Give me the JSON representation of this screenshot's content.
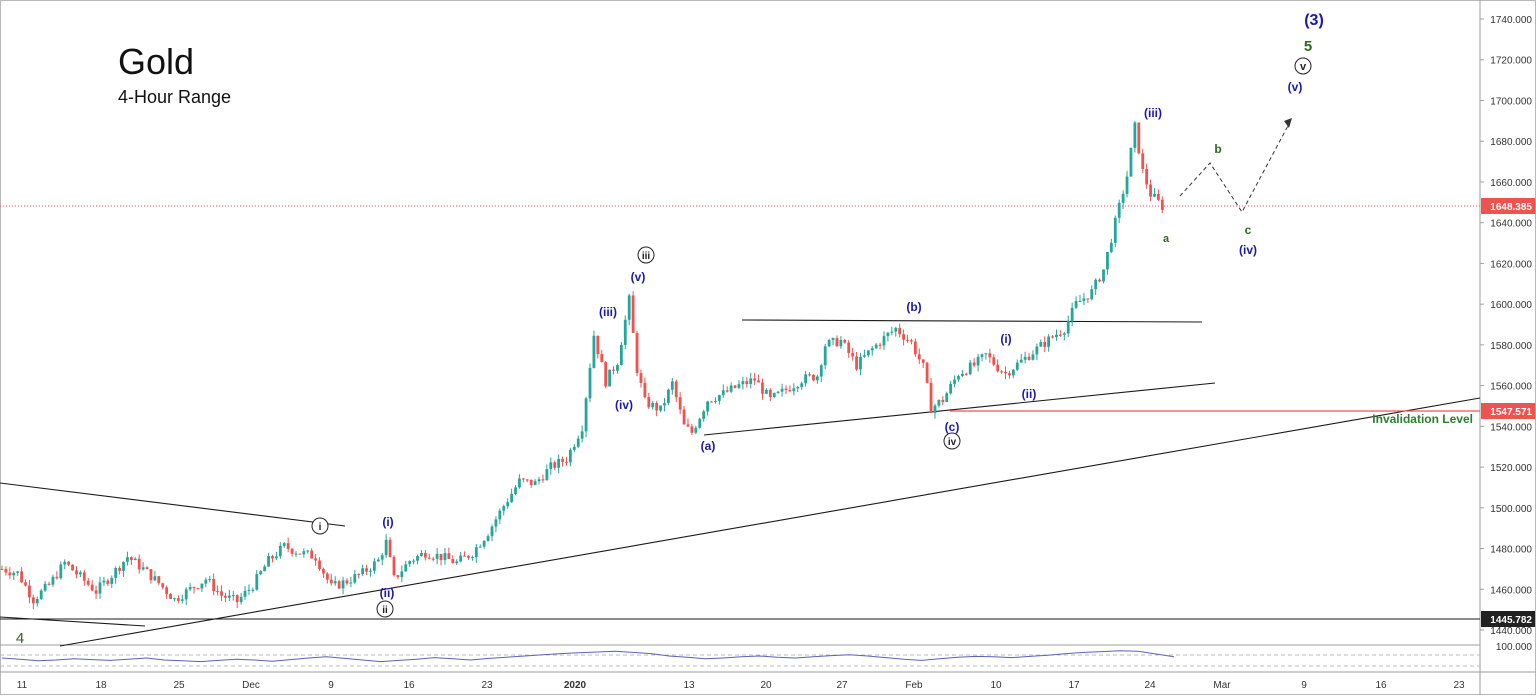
{
  "chart_data": {
    "type": "candlestick",
    "title": "Gold",
    "subtitle": "4-Hour Range",
    "colors": {
      "up": "#26a69a",
      "down": "#ef5350",
      "current_price_line": "#ef5350",
      "invalidation_line": "#ef5350",
      "invalidation_text": "#2e7d32",
      "wave_blue": "#1a1aa6",
      "wave_green": "#2e6b1f",
      "wave_black": "#222222",
      "rsi_line": "#5b63b7"
    },
    "price_axis": {
      "min": 1430,
      "max": 1745,
      "ticks": [
        "1740.000",
        "1720.000",
        "1700.000",
        "1680.000",
        "1660.000",
        "1640.000",
        "1620.000",
        "1600.000",
        "1580.000",
        "1560.000",
        "1540.000",
        "1520.000",
        "1500.000",
        "1480.000",
        "1460.000",
        "1440.000"
      ]
    },
    "time_axis_labels": [
      "11",
      "18",
      "25",
      "Dec",
      "9",
      "16",
      "23",
      "2020",
      "13",
      "20",
      "27",
      "Feb",
      "10",
      "17",
      "24",
      "Mar",
      "9",
      "16",
      "23"
    ],
    "price_labels": [
      {
        "name": "current-price",
        "text": "1648.385",
        "value": 1648.385,
        "style": "red"
      },
      {
        "name": "invalidation-price",
        "text": "1547.571",
        "value": 1547.571,
        "style": "red"
      },
      {
        "name": "support-price",
        "text": "1445.782",
        "value": 1445.782,
        "style": "dark"
      }
    ],
    "invalidation_text": "Invalidation Level",
    "price_path": [
      {
        "t": 0,
        "p": 1470
      },
      {
        "t": 2,
        "p": 1468
      },
      {
        "t": 4,
        "p": 1455
      },
      {
        "t": 6,
        "p": 1462
      },
      {
        "t": 8,
        "p": 1473
      },
      {
        "t": 10,
        "p": 1466
      },
      {
        "t": 12,
        "p": 1459
      },
      {
        "t": 14,
        "p": 1467
      },
      {
        "t": 16,
        "p": 1476
      },
      {
        "t": 18,
        "p": 1470
      },
      {
        "t": 20,
        "p": 1463
      },
      {
        "t": 22,
        "p": 1455
      },
      {
        "t": 24,
        "p": 1460
      },
      {
        "t": 26,
        "p": 1465
      },
      {
        "t": 28,
        "p": 1457
      },
      {
        "t": 30,
        "p": 1454
      },
      {
        "t": 32,
        "p": 1462
      },
      {
        "t": 34,
        "p": 1474
      },
      {
        "t": 36,
        "p": 1481
      },
      {
        "t": 38,
        "p": 1478
      },
      {
        "t": 40,
        "p": 1476
      },
      {
        "t": 42,
        "p": 1461
      },
      {
        "t": 44,
        "p": 1464
      },
      {
        "t": 46,
        "p": 1468
      },
      {
        "t": 48,
        "p": 1474
      },
      {
        "t": 49,
        "p": 1483
      },
      {
        "t": 50,
        "p": 1465
      },
      {
        "t": 52,
        "p": 1474
      },
      {
        "t": 54,
        "p": 1478
      },
      {
        "t": 56,
        "p": 1476
      },
      {
        "t": 58,
        "p": 1473
      },
      {
        "t": 60,
        "p": 1478
      },
      {
        "t": 62,
        "p": 1488
      },
      {
        "t": 64,
        "p": 1501
      },
      {
        "t": 66,
        "p": 1513
      },
      {
        "t": 68,
        "p": 1512
      },
      {
        "t": 70,
        "p": 1520
      },
      {
        "t": 72,
        "p": 1524
      },
      {
        "t": 74,
        "p": 1540
      },
      {
        "t": 75.5,
        "p": 1585
      },
      {
        "t": 77,
        "p": 1562
      },
      {
        "t": 78.5,
        "p": 1572
      },
      {
        "t": 80,
        "p": 1602
      },
      {
        "t": 81,
        "p": 1568
      },
      {
        "t": 82,
        "p": 1552
      },
      {
        "t": 84,
        "p": 1548
      },
      {
        "t": 85.5,
        "p": 1561
      },
      {
        "t": 87,
        "p": 1540
      },
      {
        "t": 88,
        "p": 1537
      },
      {
        "t": 90,
        "p": 1553
      },
      {
        "t": 92,
        "p": 1556
      },
      {
        "t": 94,
        "p": 1560
      },
      {
        "t": 96,
        "p": 1563
      },
      {
        "t": 98,
        "p": 1553
      },
      {
        "t": 100,
        "p": 1558
      },
      {
        "t": 102,
        "p": 1563
      },
      {
        "t": 104,
        "p": 1565
      },
      {
        "t": 105,
        "p": 1580
      },
      {
        "t": 107,
        "p": 1582
      },
      {
        "t": 109,
        "p": 1570
      },
      {
        "t": 111,
        "p": 1578
      },
      {
        "t": 113,
        "p": 1585
      },
      {
        "t": 114,
        "p": 1588
      },
      {
        "t": 116,
        "p": 1581
      },
      {
        "t": 117.5,
        "p": 1569
      },
      {
        "t": 118.5,
        "p": 1549
      },
      {
        "t": 120,
        "p": 1553
      },
      {
        "t": 122,
        "p": 1566
      },
      {
        "t": 124,
        "p": 1570
      },
      {
        "t": 125.5,
        "p": 1575
      },
      {
        "t": 127,
        "p": 1569
      },
      {
        "t": 128,
        "p": 1566
      },
      {
        "t": 130,
        "p": 1572
      },
      {
        "t": 132,
        "p": 1578
      },
      {
        "t": 134,
        "p": 1584
      },
      {
        "t": 135.5,
        "p": 1588
      },
      {
        "t": 137,
        "p": 1600
      },
      {
        "t": 139,
        "p": 1606
      },
      {
        "t": 140.5,
        "p": 1617
      },
      {
        "t": 142,
        "p": 1640
      },
      {
        "t": 143.5,
        "p": 1663
      },
      {
        "t": 144.5,
        "p": 1687
      },
      {
        "t": 145.5,
        "p": 1665
      },
      {
        "t": 146.5,
        "p": 1654
      },
      {
        "t": 148,
        "p": 1648
      }
    ],
    "rsi": {
      "label": "100.000",
      "values": [
        55,
        52,
        48,
        50,
        53,
        51,
        49,
        52,
        55,
        50,
        48,
        46,
        49,
        52,
        50,
        47,
        51,
        55,
        58,
        54,
        50,
        46,
        49,
        52,
        56,
        53,
        50,
        54,
        57,
        60,
        63,
        66,
        68,
        70,
        72,
        69,
        66,
        60,
        57,
        53,
        55,
        58,
        60,
        57,
        55,
        58,
        61,
        63,
        60,
        56,
        52,
        49,
        53,
        57,
        59,
        58,
        56,
        59,
        62,
        66,
        69,
        71,
        73,
        72,
        65,
        58
      ]
    },
    "wave_labels": [
      {
        "name": "wave-label-3-major",
        "text": "(3)",
        "style": "blue"
      },
      {
        "name": "wave-label-5",
        "text": "5",
        "style": "green"
      },
      {
        "name": "wave-label-v-circle",
        "text": "v",
        "style": "circle"
      },
      {
        "name": "wave-label-v-paren",
        "text": "(v)",
        "style": "blue"
      },
      {
        "name": "wave-label-iii-top",
        "text": "(iii)",
        "style": "blue"
      },
      {
        "name": "wave-label-b-green",
        "text": "b",
        "style": "green"
      },
      {
        "name": "wave-label-c-green",
        "text": "c",
        "style": "green"
      },
      {
        "name": "wave-label-iv-paren",
        "text": "(iv)",
        "style": "blue"
      },
      {
        "name": "wave-label-a-green",
        "text": "a",
        "style": "green"
      },
      {
        "name": "wave-label-iii-circle",
        "text": "iii",
        "style": "circle"
      },
      {
        "name": "wave-label-v-jan",
        "text": "(v)",
        "style": "blue"
      },
      {
        "name": "wave-label-iii-jan",
        "text": "(iii)",
        "style": "blue"
      },
      {
        "name": "wave-label-iv-jan",
        "text": "(iv)",
        "style": "blue"
      },
      {
        "name": "wave-label-a-jan",
        "text": "(a)",
        "style": "blue"
      },
      {
        "name": "wave-label-b-jan",
        "text": "(b)",
        "style": "blue"
      },
      {
        "name": "wave-label-i-feb",
        "text": "(i)",
        "style": "blue"
      },
      {
        "name": "wave-label-ii-feb",
        "text": "(ii)",
        "style": "blue"
      },
      {
        "name": "wave-label-c-feb",
        "text": "(c)",
        "style": "blue"
      },
      {
        "name": "wave-label-iv-circle",
        "text": "iv",
        "style": "circle"
      },
      {
        "name": "wave-label-i-circle",
        "text": "i",
        "style": "circle"
      },
      {
        "name": "wave-label-i-dec",
        "text": "(i)",
        "style": "blue"
      },
      {
        "name": "wave-label-ii-dec",
        "text": "(ii)",
        "style": "blue"
      },
      {
        "name": "wave-label-ii-circle",
        "text": "ii",
        "style": "circle"
      },
      {
        "name": "wave-label-4",
        "text": "4",
        "style": "green"
      }
    ]
  }
}
